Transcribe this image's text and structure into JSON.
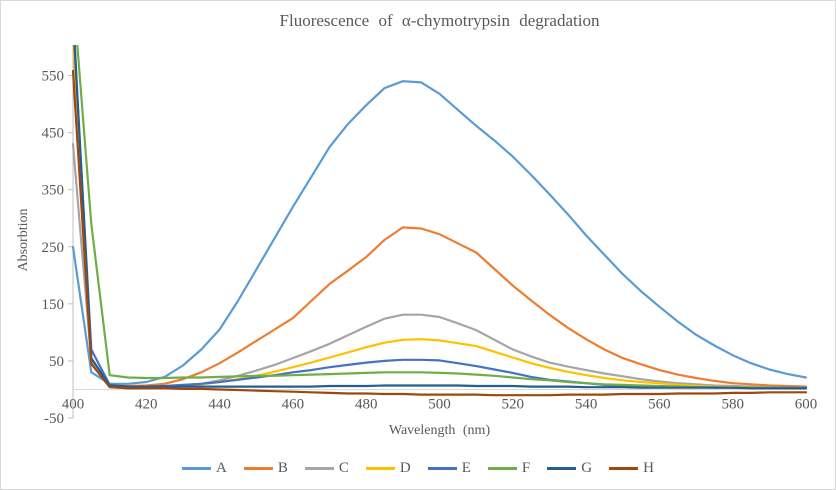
{
  "chart_data": {
    "type": "line",
    "title": "Fluorescence of α-chymotrypsin degradation",
    "xlabel": "Wavelength (nm)",
    "ylabel": "Absorbtion",
    "xlim": [
      400,
      600
    ],
    "ylim": [
      -50,
      600
    ],
    "x_ticks": [
      400,
      420,
      440,
      460,
      480,
      500,
      520,
      540,
      560,
      580,
      600
    ],
    "y_ticks": [
      -50,
      50,
      150,
      250,
      350,
      450,
      550
    ],
    "grid": false,
    "zero_line": true,
    "legend_position": "bottom",
    "x": [
      400,
      405,
      410,
      415,
      420,
      425,
      430,
      435,
      440,
      445,
      450,
      455,
      460,
      465,
      470,
      475,
      480,
      485,
      490,
      495,
      500,
      505,
      510,
      515,
      520,
      525,
      530,
      535,
      540,
      545,
      550,
      555,
      560,
      565,
      570,
      575,
      580,
      585,
      590,
      595,
      600
    ],
    "series": [
      {
        "name": "A",
        "color": "#5B9BD5",
        "values": [
          250,
          30,
          10,
          10,
          13,
          22,
          42,
          70,
          105,
          155,
          210,
          265,
          320,
          372,
          425,
          465,
          498,
          528,
          540,
          538,
          518,
          490,
          462,
          436,
          408,
          376,
          342,
          307,
          270,
          236,
          202,
          172,
          145,
          119,
          96,
          77,
          60,
          46,
          35,
          27,
          21
        ]
      },
      {
        "name": "B",
        "color": "#ED7D31",
        "values": [
          620,
          45,
          8,
          6,
          7,
          10,
          18,
          30,
          46,
          65,
          85,
          105,
          125,
          155,
          185,
          208,
          232,
          262,
          284,
          282,
          272,
          256,
          240,
          211,
          182,
          156,
          131,
          108,
          88,
          70,
          55,
          44,
          34,
          26,
          20,
          15,
          11,
          9,
          7,
          6,
          5
        ]
      },
      {
        "name": "C",
        "color": "#A5A5A5",
        "values": [
          430,
          50,
          5,
          2,
          2,
          3,
          6,
          10,
          16,
          24,
          33,
          43,
          55,
          67,
          80,
          95,
          110,
          124,
          131,
          131,
          127,
          116,
          104,
          87,
          70,
          58,
          47,
          40,
          34,
          28,
          23,
          18,
          14,
          11,
          9,
          7,
          6,
          5,
          4,
          3,
          3
        ]
      },
      {
        "name": "D",
        "color": "#FFC000",
        "values": [
          620,
          45,
          6,
          3,
          3,
          4,
          6,
          9,
          13,
          18,
          24,
          31,
          39,
          47,
          56,
          65,
          74,
          82,
          87,
          88,
          86,
          81,
          76,
          66,
          56,
          46,
          38,
          31,
          25,
          20,
          16,
          13,
          11,
          8,
          6,
          5,
          4,
          4,
          3,
          3,
          3
        ]
      },
      {
        "name": "E",
        "color": "#4472C4",
        "values": [
          650,
          70,
          8,
          5,
          5,
          6,
          8,
          10,
          13,
          17,
          21,
          25,
          30,
          34,
          39,
          43,
          47,
          50,
          52,
          52,
          51,
          46,
          41,
          35,
          29,
          22,
          17,
          14,
          11,
          8,
          6,
          5,
          5,
          4,
          4,
          3,
          3,
          3,
          3,
          3,
          3
        ]
      },
      {
        "name": "F",
        "color": "#70AD47",
        "values": [
          700,
          290,
          25,
          21,
          20,
          20,
          21,
          21,
          22,
          23,
          24,
          24,
          25,
          26,
          27,
          28,
          29,
          30,
          30,
          30,
          29,
          28,
          26,
          24,
          21,
          18,
          16,
          13,
          11,
          9,
          8,
          7,
          6,
          5,
          4,
          4,
          3,
          3,
          3,
          2,
          2
        ]
      },
      {
        "name": "G",
        "color": "#255E91",
        "values": [
          660,
          55,
          7,
          5,
          5,
          5,
          5,
          5,
          5,
          5,
          5,
          5,
          5,
          5,
          6,
          6,
          6,
          7,
          7,
          7,
          7,
          7,
          6,
          6,
          6,
          5,
          5,
          5,
          4,
          4,
          4,
          3,
          3,
          3,
          3,
          3,
          3,
          2,
          2,
          2,
          2
        ]
      },
      {
        "name": "H",
        "color": "#9E480E",
        "values": [
          558,
          45,
          4,
          2,
          2,
          2,
          1,
          1,
          0,
          -1,
          -2,
          -3,
          -4,
          -5,
          -6,
          -7,
          -7,
          -8,
          -8,
          -9,
          -9,
          -9,
          -9,
          -10,
          -10,
          -10,
          -10,
          -9,
          -9,
          -9,
          -8,
          -8,
          -8,
          -7,
          -7,
          -7,
          -6,
          -6,
          -5,
          -5,
          -5
        ]
      }
    ]
  },
  "colors": {
    "text": "#595959",
    "axis_line": "#BFBFBF",
    "zero_line": "#D9D9D9",
    "border": "#D9D9D9",
    "background": "#FFFFFF"
  }
}
